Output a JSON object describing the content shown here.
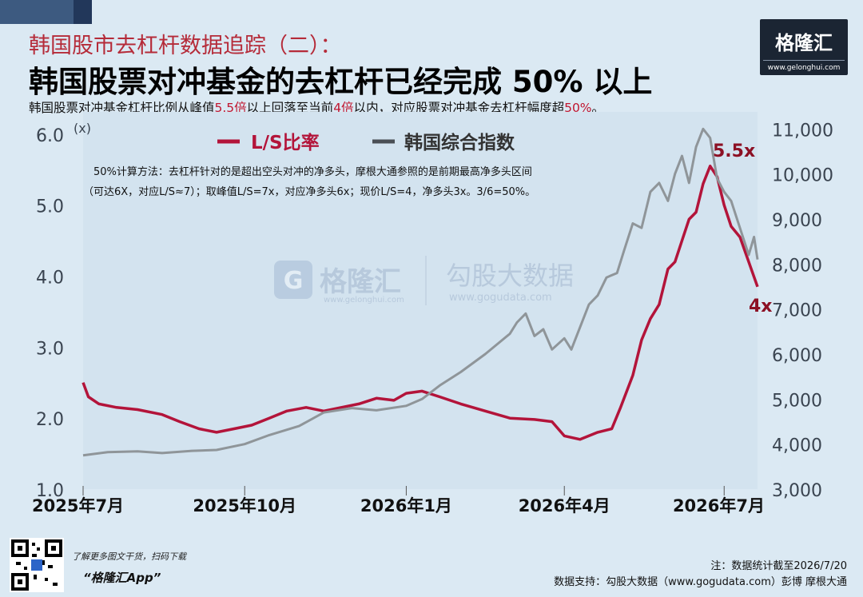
{
  "header": {
    "supertitle": "韩国股市去杠杆数据追踪（二）：",
    "title": "韩国股票对冲基金的去杠杆已经完成 50% 以上",
    "subtitle_parts": [
      {
        "text": "韩国股票对冲基金杠杆比例从峰值",
        "hl": false
      },
      {
        "text": "5.5倍",
        "hl": true
      },
      {
        "text": "以上回落至当前",
        "hl": false
      },
      {
        "text": "4倍",
        "hl": true
      },
      {
        "text": "以内，对应股票对冲基金去杠杆幅度超",
        "hl": false
      },
      {
        "text": "50%",
        "hl": true
      },
      {
        "text": "。",
        "hl": false
      }
    ]
  },
  "logo": {
    "text": "格隆汇",
    "url": "www.gelonghui.com"
  },
  "watermark": {
    "brand1": "格隆汇",
    "url1": "www.gelonghui.com",
    "brand2": "勾股大数据",
    "url2": "www.gogudata.com"
  },
  "chart_data": {
    "type": "line",
    "left_axis_unit": "(x)",
    "y_left_ticks": [
      "1.0",
      "2.0",
      "3.0",
      "4.0",
      "5.0",
      "6.0"
    ],
    "ylim_left": [
      1.0,
      6.2
    ],
    "y_right_ticks": [
      "3,000",
      "4,000",
      "5,000",
      "6,000",
      "7,000",
      "8,000",
      "9,000",
      "10,000",
      "11,000"
    ],
    "ylim_right": [
      3000,
      11200
    ],
    "x_ticks": [
      "2025年7月",
      "2025年10月",
      "2026年1月",
      "2026年4月",
      "2026年7月"
    ],
    "xlim": [
      "2025-07-01",
      "2026-07-20"
    ],
    "legend": {
      "position": "top",
      "items": [
        "L/S比率",
        "韩国综合指数"
      ]
    },
    "colors": {
      "ls": "#b3143a",
      "index": "#8f9599"
    },
    "method_note": [
      "50%计算方法：去杠杆针对的是超出空头对冲的净多头，摩根大通参照的是前期最高净多头区间",
      "（可达6X，对应L/S≈7）；取峰值L/S=7x，对应净多头6x；现价L/S=4，净多头3x。3/6=50%。"
    ],
    "annotations": [
      {
        "text": "5.5x",
        "x": "2026-06-23",
        "y": 5.6
      },
      {
        "text": "4x",
        "x": "2026-07-20",
        "y": 3.6
      }
    ],
    "series": [
      {
        "name": "L/S比率",
        "axis": "left",
        "points": [
          [
            "2025-07-01",
            2.5
          ],
          [
            "2025-07-04",
            2.3
          ],
          [
            "2025-07-10",
            2.2
          ],
          [
            "2025-07-20",
            2.15
          ],
          [
            "2025-08-01",
            2.12
          ],
          [
            "2025-08-15",
            2.05
          ],
          [
            "2025-08-25",
            1.95
          ],
          [
            "2025-09-05",
            1.85
          ],
          [
            "2025-09-15",
            1.8
          ],
          [
            "2025-09-25",
            1.85
          ],
          [
            "2025-10-05",
            1.9
          ],
          [
            "2025-10-15",
            2.0
          ],
          [
            "2025-10-25",
            2.1
          ],
          [
            "2025-11-05",
            2.15
          ],
          [
            "2025-11-15",
            2.1
          ],
          [
            "2025-11-25",
            2.15
          ],
          [
            "2025-12-05",
            2.2
          ],
          [
            "2025-12-15",
            2.28
          ],
          [
            "2025-12-25",
            2.25
          ],
          [
            "2026-01-01",
            2.35
          ],
          [
            "2026-01-10",
            2.38
          ],
          [
            "2026-01-20",
            2.3
          ],
          [
            "2026-02-01",
            2.2
          ],
          [
            "2026-02-15",
            2.1
          ],
          [
            "2026-03-01",
            2.0
          ],
          [
            "2026-03-15",
            1.98
          ],
          [
            "2026-03-25",
            1.95
          ],
          [
            "2026-04-01",
            1.75
          ],
          [
            "2026-04-10",
            1.7
          ],
          [
            "2026-04-20",
            1.8
          ],
          [
            "2026-04-28",
            1.85
          ],
          [
            "2026-05-03",
            2.15
          ],
          [
            "2026-05-10",
            2.6
          ],
          [
            "2026-05-15",
            3.1
          ],
          [
            "2026-05-20",
            3.4
          ],
          [
            "2026-05-25",
            3.6
          ],
          [
            "2026-05-30",
            4.1
          ],
          [
            "2026-06-03",
            4.2
          ],
          [
            "2026-06-07",
            4.5
          ],
          [
            "2026-06-11",
            4.8
          ],
          [
            "2026-06-15",
            4.9
          ],
          [
            "2026-06-19",
            5.3
          ],
          [
            "2026-06-23",
            5.55
          ],
          [
            "2026-06-27",
            5.4
          ],
          [
            "2026-07-01",
            5.0
          ],
          [
            "2026-07-05",
            4.7
          ],
          [
            "2026-07-10",
            4.55
          ],
          [
            "2026-07-15",
            4.2
          ],
          [
            "2026-07-20",
            3.85
          ]
        ]
      },
      {
        "name": "韩国综合指数",
        "axis": "right",
        "points": [
          [
            "2025-07-01",
            3750
          ],
          [
            "2025-07-15",
            3820
          ],
          [
            "2025-08-01",
            3840
          ],
          [
            "2025-08-15",
            3800
          ],
          [
            "2025-09-01",
            3850
          ],
          [
            "2025-09-15",
            3870
          ],
          [
            "2025-10-01",
            4000
          ],
          [
            "2025-10-15",
            4200
          ],
          [
            "2025-11-01",
            4400
          ],
          [
            "2025-11-15",
            4700
          ],
          [
            "2025-12-01",
            4800
          ],
          [
            "2025-12-15",
            4750
          ],
          [
            "2026-01-01",
            4850
          ],
          [
            "2026-01-10",
            5000
          ],
          [
            "2026-01-20",
            5300
          ],
          [
            "2026-02-01",
            5600
          ],
          [
            "2026-02-15",
            6000
          ],
          [
            "2026-03-01",
            6450
          ],
          [
            "2026-03-05",
            6700
          ],
          [
            "2026-03-10",
            6900
          ],
          [
            "2026-03-15",
            6400
          ],
          [
            "2026-03-20",
            6550
          ],
          [
            "2026-03-25",
            6100
          ],
          [
            "2026-04-01",
            6350
          ],
          [
            "2026-04-05",
            6100
          ],
          [
            "2026-04-10",
            6600
          ],
          [
            "2026-04-15",
            7100
          ],
          [
            "2026-04-20",
            7300
          ],
          [
            "2026-04-25",
            7700
          ],
          [
            "2026-05-01",
            7800
          ],
          [
            "2026-05-05",
            8300
          ],
          [
            "2026-05-10",
            8900
          ],
          [
            "2026-05-15",
            8800
          ],
          [
            "2026-05-20",
            9600
          ],
          [
            "2026-05-25",
            9800
          ],
          [
            "2026-05-30",
            9400
          ],
          [
            "2026-06-03",
            10000
          ],
          [
            "2026-06-07",
            10400
          ],
          [
            "2026-06-11",
            9800
          ],
          [
            "2026-06-15",
            10600
          ],
          [
            "2026-06-19",
            11000
          ],
          [
            "2026-06-23",
            10800
          ],
          [
            "2026-06-27",
            9900
          ],
          [
            "2026-07-01",
            9600
          ],
          [
            "2026-07-05",
            9400
          ],
          [
            "2026-07-10",
            8800
          ],
          [
            "2026-07-15",
            8200
          ],
          [
            "2026-07-18",
            8600
          ],
          [
            "2026-07-20",
            8100
          ]
        ]
      }
    ]
  },
  "footer": {
    "promo": "了解更多图文干货，扫码下载",
    "app": "“格隆汇App”",
    "note": "注：数据统计截至2026/7/20",
    "source": "数据支持：勾股大数据（www.gogudata.com）彭博 摩根大通"
  }
}
